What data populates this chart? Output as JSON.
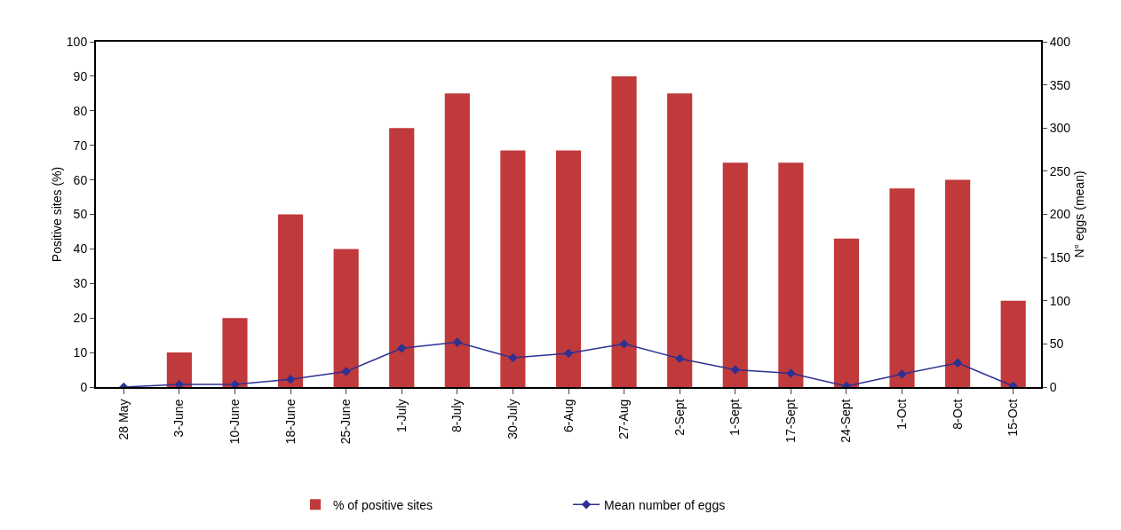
{
  "chart_data": {
    "type": "bar",
    "ylabel": "Positive sites (%)",
    "y2label": "N° eggs (mean)",
    "categories": [
      "28 May",
      "3-June",
      "10-June",
      "18-June",
      "25-June",
      "1-July",
      "8-July",
      "30-July",
      "6-Aug",
      "27-Aug",
      "2-Sept",
      "1-Sept",
      "17-Sept",
      "24-Sept",
      "1-Oct",
      "8-Oct",
      "15-Oct"
    ],
    "series": [
      {
        "name": "% of positive sites",
        "color": "#c0393b",
        "values": [
          0,
          10,
          20,
          50,
          40,
          75,
          85,
          68.5,
          68.5,
          90,
          85,
          65,
          65,
          43,
          57.5,
          60,
          25
        ]
      },
      {
        "name": "Mean number of eggs",
        "type": "line",
        "axis": "y2",
        "color": "#2e3192",
        "values": [
          0,
          3,
          3,
          9,
          18,
          45,
          52,
          34,
          39,
          50,
          33,
          20,
          16,
          1,
          15,
          28,
          1
        ]
      }
    ],
    "ylim": [
      0,
      100
    ],
    "yticks": [
      0,
      10,
      20,
      30,
      40,
      50,
      60,
      70,
      80,
      90,
      100
    ],
    "y2lim": [
      0,
      400
    ],
    "y2ticks": [
      0,
      50,
      100,
      150,
      200,
      250,
      300,
      350,
      400
    ],
    "grid": false,
    "legend": "bottom",
    "marker": "diamond",
    "line_style": "solid"
  }
}
